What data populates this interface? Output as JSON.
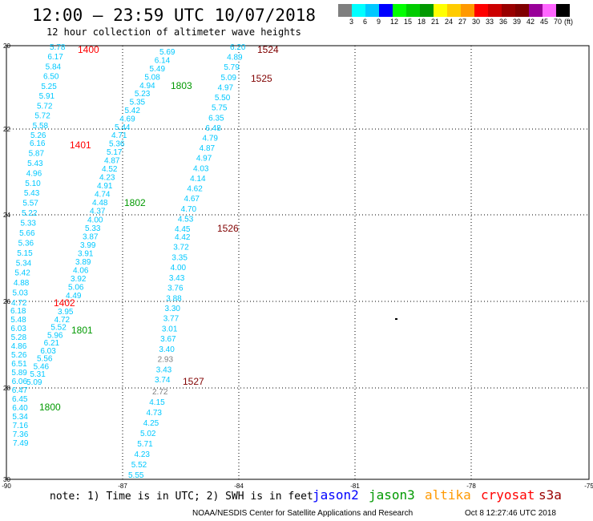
{
  "header": {
    "title": "12:00 – 23:59 UTC 10/07/2018",
    "subtitle": "12 hour collection of altimeter wave heights"
  },
  "legend": {
    "colors": [
      "#7f7f7f",
      "#00ffff",
      "#00c8ff",
      "#0000ff",
      "#00ff00",
      "#00cc00",
      "#009900",
      "#ffff00",
      "#ffcc00",
      "#ff9900",
      "#ff0000",
      "#cc0000",
      "#990000",
      "#800000",
      "#990099",
      "#ff66ff",
      "#000000"
    ],
    "labels": [
      "3",
      "6",
      "9",
      "12",
      "15",
      "18",
      "21",
      "24",
      "27",
      "30",
      "33",
      "36",
      "39",
      "42",
      "45",
      "70",
      "(ft)"
    ]
  },
  "axes": {
    "lat_labels": [
      "20",
      "22",
      "24",
      "26",
      "28",
      "30"
    ],
    "lon_labels": [
      "-90",
      "-87",
      "-84",
      "-81",
      "-78",
      "-75"
    ]
  },
  "passes": [
    {
      "time": "1400",
      "color": "#ff0000",
      "values": [
        "5.78",
        "6.17",
        "5.84",
        "6.50",
        "5.25",
        "5.91",
        "5.72",
        "5.72",
        "5.58",
        "5.26"
      ]
    },
    {
      "time": "1401",
      "color": "#ff0000",
      "values": [
        "6.16",
        "5.87",
        "5.43",
        "4.96",
        "5.10",
        "5.43",
        "5.57",
        "5.22",
        "5.33",
        "5.66",
        "5.36",
        "5.15",
        "5.34",
        "5.42",
        "4.88",
        "5.03",
        "4.72"
      ]
    },
    {
      "time": "1402",
      "color": "#ff0000",
      "values": [
        "6.18",
        "5.48",
        "6.03",
        "5.28",
        "4.86",
        "5.26",
        "6.51",
        "5.89",
        "6.06",
        "6.47",
        "6.45",
        "6.40",
        "5.34",
        "7.16",
        "7.36",
        "7.49"
      ]
    },
    {
      "time": "1524",
      "color": "#800000",
      "values": [
        "6.20",
        "4.89",
        "5.79",
        "5.09",
        "4.97",
        "5.50",
        "5.75",
        "6.35",
        "6.48",
        "4.79",
        "4.87",
        "4.97",
        "4.03",
        "4.14",
        "4.62",
        "4.67",
        "4.70",
        "4.53",
        "4.45"
      ]
    },
    {
      "time": "1525",
      "color": "#800000",
      "values": []
    },
    {
      "time": "1526",
      "color": "#800000",
      "values": [
        "4.42",
        "3.72",
        "3.35",
        "4.00",
        "3.43",
        "3.76",
        "3.88",
        "3.30",
        "3.77",
        "3.01",
        "3.67",
        "3.40",
        "2.93",
        "3.43",
        "3.74"
      ]
    },
    {
      "time": "1527",
      "color": "#800000",
      "values": [
        "2.72",
        "4.15",
        "4.73",
        "4.25",
        "5.02",
        "5.71",
        "4.23",
        "5.52",
        "5.55"
      ]
    },
    {
      "time": "1803",
      "color": "#009900",
      "values": [
        "5.69",
        "6.14",
        "5.49",
        "5.08",
        "4.94",
        "5.23",
        "5.35",
        "5.42",
        "4.69",
        "5.44"
      ]
    },
    {
      "time": "1802",
      "color": "#009900",
      "values": [
        "4.71",
        "5.36",
        "5.17",
        "4.87",
        "4.52",
        "4.23",
        "4.91",
        "4.74",
        "4.48",
        "4.37",
        "4.00",
        "5.33",
        "3.87",
        "3.99",
        "3.91",
        "3.89",
        "4.06",
        "3.92",
        "5.06",
        "4.49"
      ]
    },
    {
      "time": "1801",
      "color": "#009900",
      "values": [
        "3.95",
        "4.72",
        "5.52",
        "5.96",
        "6.21",
        "6.03",
        "5.56",
        "5.46",
        "5.31",
        "5.09"
      ]
    },
    {
      "time": "1800",
      "color": "#009900",
      "values": []
    }
  ],
  "footer": {
    "note": "note: 1) Time is in UTC; 2) SWH is in feet",
    "satellites": [
      {
        "name": "jason2",
        "color": "#0000ff"
      },
      {
        "name": "jason3",
        "color": "#009900"
      },
      {
        "name": "altika",
        "color": "#ff9900"
      },
      {
        "name": "cryosat",
        "color": "#ff0000"
      },
      {
        "name": "s3a",
        "color": "#990000"
      }
    ],
    "credit": "NOAA/NESDIS Center for Satellite Applications and Research",
    "timestamp": "Oct  8 12:27:46 UTC 2018"
  }
}
